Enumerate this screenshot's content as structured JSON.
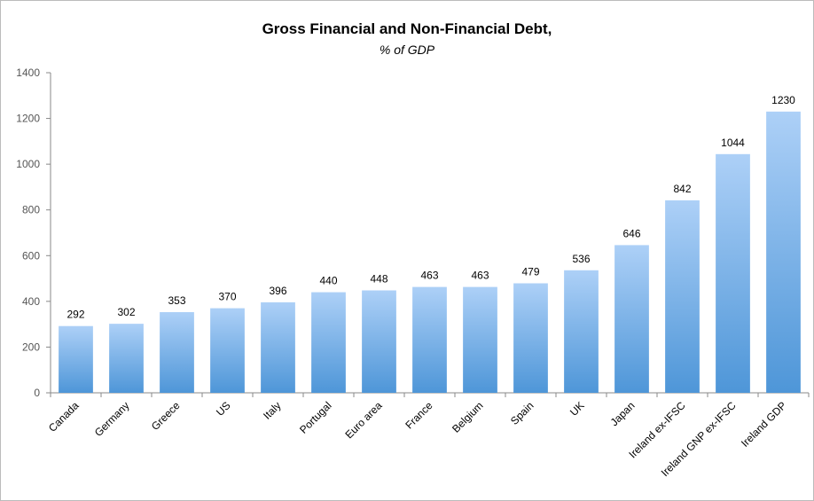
{
  "chart_data": {
    "type": "bar",
    "title": "Gross Financial and Non-Financial Debt,",
    "subtitle": "% of GDP",
    "categories": [
      "Canada",
      "Germany",
      "Greece",
      "US",
      "Italy",
      "Portugal",
      "Euro area",
      "France",
      "Belgium",
      "Spain",
      "UK",
      "Japan",
      "Ireland ex-IFSC",
      "Ireland GNP ex-IFSC",
      "Ireland GDP"
    ],
    "values": [
      292,
      302,
      353,
      370,
      396,
      440,
      448,
      463,
      463,
      479,
      536,
      646,
      842,
      1044,
      1230
    ],
    "color": "#5b9fdc",
    "ylim": [
      0,
      1400
    ],
    "yticks": [
      0,
      200,
      400,
      600,
      800,
      1000,
      1200,
      1400
    ],
    "grid": false
  }
}
